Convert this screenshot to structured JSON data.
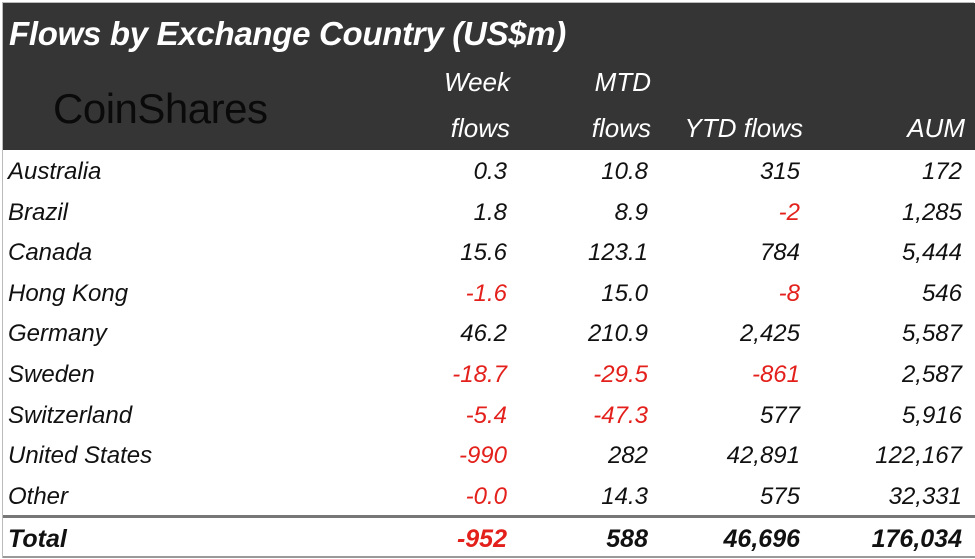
{
  "title": "Flows by Exchange Country (US$m)",
  "logo": "CoinShares",
  "colors": {
    "header_bg": "#353535",
    "negative": "#e3201b",
    "text": "#111111"
  },
  "columns": [
    {
      "line1": "Week",
      "line2": "flows"
    },
    {
      "line1": "MTD",
      "line2": "flows"
    },
    {
      "line1": "",
      "line2": "YTD flows"
    },
    {
      "line1": "",
      "line2": "AUM"
    }
  ],
  "chart_data": {
    "type": "table",
    "title": "Flows by Exchange Country (US$m)",
    "columns": [
      "Week flows",
      "MTD flows",
      "YTD flows",
      "AUM"
    ],
    "rows": [
      {
        "country": "Australia",
        "week": "0.3",
        "mtd": "10.8",
        "ytd": "315",
        "aum": "172"
      },
      {
        "country": "Brazil",
        "week": "1.8",
        "mtd": "8.9",
        "ytd": "-2",
        "aum": "1,285"
      },
      {
        "country": "Canada",
        "week": "15.6",
        "mtd": "123.1",
        "ytd": "784",
        "aum": "5,444"
      },
      {
        "country": "Hong Kong",
        "week": "-1.6",
        "mtd": "15.0",
        "ytd": "-8",
        "aum": "546"
      },
      {
        "country": "Germany",
        "week": "46.2",
        "mtd": "210.9",
        "ytd": "2,425",
        "aum": "5,587"
      },
      {
        "country": "Sweden",
        "week": "-18.7",
        "mtd": "-29.5",
        "ytd": "-861",
        "aum": "2,587"
      },
      {
        "country": "Switzerland",
        "week": "-5.4",
        "mtd": "-47.3",
        "ytd": "577",
        "aum": "5,916"
      },
      {
        "country": "United States",
        "week": "-990",
        "mtd": "282",
        "ytd": "42,891",
        "aum": "122,167"
      },
      {
        "country": "Other",
        "week": "-0.0",
        "mtd": "14.3",
        "ytd": "575",
        "aum": "32,331"
      }
    ],
    "total": {
      "country": "Total",
      "week": "-952",
      "mtd": "588",
      "ytd": "46,696",
      "aum": "176,034"
    }
  }
}
